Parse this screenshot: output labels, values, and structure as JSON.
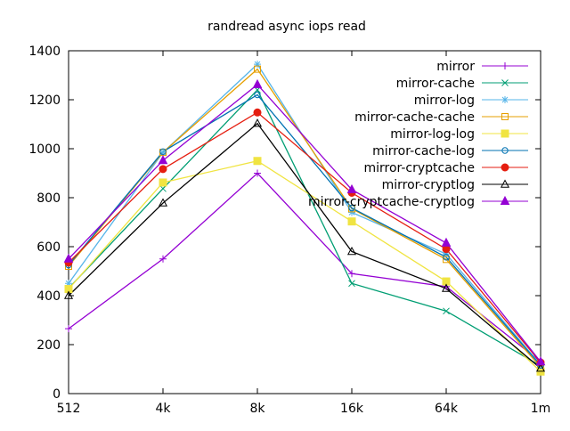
{
  "title": "randread async iops read",
  "chart_data": {
    "type": "line",
    "title": "randread async iops read",
    "xlabel": "",
    "ylabel": "",
    "categories": [
      "512",
      "4k",
      "8k",
      "16k",
      "64k",
      "1m"
    ],
    "yticks": [
      0,
      200,
      400,
      600,
      800,
      1000,
      1200,
      1400
    ],
    "ylim": [
      0,
      1400
    ],
    "grid": false,
    "legend_position": "top-right-inside",
    "series": [
      {
        "name": "mirror",
        "color": "#9400d3",
        "marker": "plus",
        "values": [
          265,
          550,
          900,
          490,
          437,
          130
        ]
      },
      {
        "name": "mirror-cache",
        "color": "#009e73",
        "marker": "x",
        "values": [
          430,
          837,
          1240,
          450,
          337,
          113
        ]
      },
      {
        "name": "mirror-log",
        "color": "#56b4e9",
        "marker": "asterisk",
        "values": [
          450,
          985,
          1345,
          740,
          570,
          118
        ]
      },
      {
        "name": "mirror-cache-cache",
        "color": "#e69f00",
        "marker": "square-open",
        "values": [
          520,
          985,
          1325,
          755,
          548,
          108
        ]
      },
      {
        "name": "mirror-log-log",
        "color": "#f0e442",
        "marker": "square-filled",
        "values": [
          427,
          862,
          950,
          703,
          458,
          90
        ]
      },
      {
        "name": "mirror-cache-log",
        "color": "#0072b2",
        "marker": "circle-open",
        "values": [
          525,
          988,
          1220,
          758,
          557,
          115
        ]
      },
      {
        "name": "mirror-cryptcache",
        "color": "#e51e10",
        "marker": "circle-filled",
        "values": [
          535,
          917,
          1148,
          820,
          590,
          127
        ]
      },
      {
        "name": "mirror-cryptlog",
        "color": "#000000",
        "marker": "triangle-open",
        "values": [
          400,
          778,
          1103,
          580,
          429,
          103
        ]
      },
      {
        "name": "mirror-cryptcache-cryptlog",
        "color": "#9400d3",
        "marker": "triangle-filled",
        "values": [
          550,
          952,
          1262,
          833,
          615,
          130
        ]
      }
    ]
  },
  "colors": {
    "background": "#ffffff",
    "axis": "#000000",
    "text": "#000000"
  }
}
